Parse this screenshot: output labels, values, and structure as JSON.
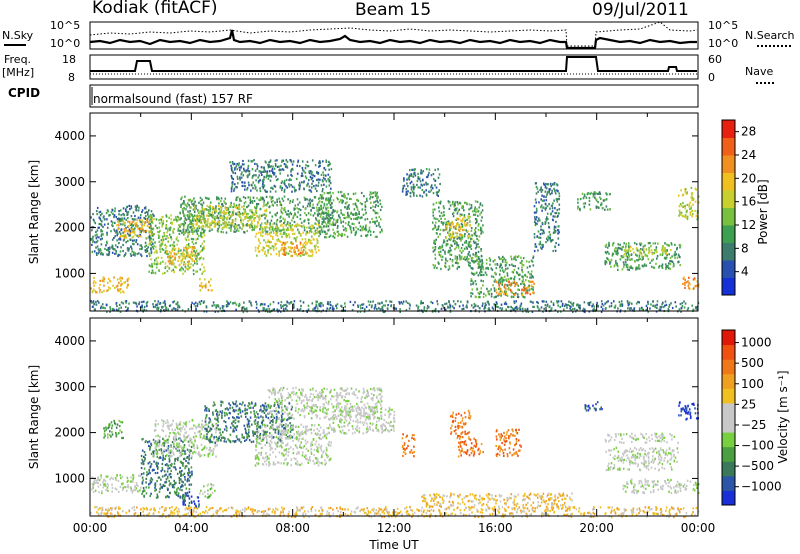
{
  "header": {
    "station": "Kodiak (fitACF)",
    "beam": "Beam 15",
    "date": "09/Jul/2011"
  },
  "summary_panels": {
    "nsky_label": "N.Sky",
    "nsky_ticks": [
      "10^5",
      "10^0"
    ],
    "nsearch_label": "N.Search",
    "nsearch_ticks": [
      "10^5",
      "10^0"
    ],
    "freq_label_1": "Freq.",
    "freq_label_2": "[MHz]",
    "freq_ticks": [
      "18",
      "8"
    ],
    "nave_label": "Nave",
    "nave_ticks": [
      "60",
      "0"
    ],
    "cpid_label": "CPID",
    "cpid_text": "normalsound (fast) 157 RF"
  },
  "chart_data": [
    {
      "type": "heatmap",
      "name": "power-panel",
      "ylabel": "Slant Range [km]",
      "ylim": [
        180,
        4500
      ],
      "yticks": [
        "1000",
        "2000",
        "3000",
        "4000"
      ],
      "xlim": [
        0,
        24
      ],
      "colorbar": {
        "label": "Power [dB]",
        "ticks": [
          "4",
          "8",
          "12",
          "16",
          "20",
          "24",
          "28"
        ],
        "colors": [
          "#1630d8",
          "#2850b0",
          "#3c7c6c",
          "#3ca050",
          "#78c040",
          "#c8d030",
          "#f0c020",
          "#f09020",
          "#f06018",
          "#e82010"
        ]
      },
      "regions": [
        {
          "t0": 0.0,
          "t1": 24.0,
          "r0": 180,
          "r1": 420,
          "level": 2
        },
        {
          "t0": 0.0,
          "t1": 1.5,
          "r0": 600,
          "r1": 950,
          "level": 6
        },
        {
          "t0": 0.0,
          "t1": 2.5,
          "r0": 1400,
          "r1": 2500,
          "level": 2
        },
        {
          "t0": 1.0,
          "t1": 2.5,
          "r0": 1800,
          "r1": 2200,
          "level": 6
        },
        {
          "t0": 2.3,
          "t1": 4.5,
          "r0": 1000,
          "r1": 2300,
          "level": 4
        },
        {
          "t0": 3.0,
          "t1": 4.2,
          "r0": 1200,
          "r1": 1600,
          "level": 6
        },
        {
          "t0": 3.5,
          "t1": 9.5,
          "r0": 1900,
          "r1": 2700,
          "level": 3
        },
        {
          "t0": 4.0,
          "t1": 7.0,
          "r0": 2000,
          "r1": 2500,
          "level": 5
        },
        {
          "t0": 6.5,
          "t1": 9.0,
          "r0": 1400,
          "r1": 2100,
          "level": 5
        },
        {
          "t0": 7.5,
          "t1": 8.5,
          "r0": 1400,
          "r1": 1700,
          "level": 7
        },
        {
          "t0": 4.3,
          "t1": 4.8,
          "r0": 650,
          "r1": 900,
          "level": 6
        },
        {
          "t0": 5.5,
          "t1": 9.5,
          "r0": 2800,
          "r1": 3500,
          "level": 2
        },
        {
          "t0": 9.0,
          "t1": 11.5,
          "r0": 1800,
          "r1": 2800,
          "level": 3
        },
        {
          "t0": 12.3,
          "t1": 13.8,
          "r0": 2700,
          "r1": 3300,
          "level": 2
        },
        {
          "t0": 13.5,
          "t1": 15.5,
          "r0": 1100,
          "r1": 2600,
          "level": 3
        },
        {
          "t0": 14.0,
          "t1": 15.0,
          "r0": 1800,
          "r1": 2300,
          "level": 6
        },
        {
          "t0": 15.0,
          "t1": 17.5,
          "r0": 500,
          "r1": 1400,
          "level": 3
        },
        {
          "t0": 16.0,
          "t1": 17.5,
          "r0": 550,
          "r1": 850,
          "level": 7
        },
        {
          "t0": 17.5,
          "t1": 18.5,
          "r0": 1500,
          "r1": 3000,
          "level": 2
        },
        {
          "t0": 19.2,
          "t1": 20.5,
          "r0": 2400,
          "r1": 2800,
          "level": 3
        },
        {
          "t0": 20.3,
          "t1": 23.3,
          "r0": 1100,
          "r1": 1700,
          "level": 3
        },
        {
          "t0": 21.0,
          "t1": 23.0,
          "r0": 1400,
          "r1": 1600,
          "level": 5
        },
        {
          "t0": 23.2,
          "t1": 24.0,
          "r0": 2200,
          "r1": 2900,
          "level": 5
        },
        {
          "t0": 23.3,
          "t1": 24.0,
          "r0": 650,
          "r1": 950,
          "level": 7
        }
      ]
    },
    {
      "type": "heatmap",
      "name": "velocity-panel",
      "ylabel": "Slant Range [km]",
      "xlabel": "Time UT",
      "ylim": [
        180,
        4500
      ],
      "yticks": [
        "1000",
        "2000",
        "3000",
        "4000"
      ],
      "xlim": [
        0,
        24
      ],
      "xticks": [
        "00:00",
        "04:00",
        "08:00",
        "12:00",
        "16:00",
        "20:00",
        "00:00"
      ],
      "colorbar": {
        "label": "Velocity [m s⁻¹]",
        "ticks": [
          "1000",
          "500",
          "100",
          "25",
          "−25",
          "−100",
          "−500",
          "−1000"
        ],
        "colors": [
          "#1a2fd8",
          "#2a55a8",
          "#3a7a5a",
          "#4aa040",
          "#78d040",
          "#c8c8c8",
          "#c8c8c8",
          "#f0c020",
          "#f0a020",
          "#f07818",
          "#f05010",
          "#e01808"
        ]
      },
      "regions": [
        {
          "t0": 0.0,
          "t1": 24.0,
          "r0": 180,
          "r1": 400,
          "level": 7
        },
        {
          "t0": 0.0,
          "t1": 2.0,
          "r0": 700,
          "r1": 1100,
          "level": 5
        },
        {
          "t0": 0.5,
          "t1": 1.3,
          "r0": 1900,
          "r1": 2300,
          "level": 3
        },
        {
          "t0": 2.0,
          "t1": 4.0,
          "r0": 600,
          "r1": 1900,
          "level": 2
        },
        {
          "t0": 2.5,
          "t1": 5.0,
          "r0": 1500,
          "r1": 2300,
          "level": 5
        },
        {
          "t0": 3.5,
          "t1": 4.3,
          "r0": 400,
          "r1": 700,
          "level": 1
        },
        {
          "t0": 4.3,
          "t1": 4.9,
          "r0": 600,
          "r1": 900,
          "level": 4
        },
        {
          "t0": 4.5,
          "t1": 8.0,
          "r0": 1800,
          "r1": 2700,
          "level": 2
        },
        {
          "t0": 6.5,
          "t1": 9.5,
          "r0": 1300,
          "r1": 2200,
          "level": 5
        },
        {
          "t0": 7.0,
          "t1": 11.5,
          "r0": 2300,
          "r1": 3000,
          "level": 5
        },
        {
          "t0": 9.5,
          "t1": 12.0,
          "r0": 2000,
          "r1": 2600,
          "level": 5
        },
        {
          "t0": 12.3,
          "t1": 12.8,
          "r0": 1500,
          "r1": 2000,
          "level": 9
        },
        {
          "t0": 14.2,
          "t1": 15.0,
          "r0": 1900,
          "r1": 2500,
          "level": 9
        },
        {
          "t0": 14.5,
          "t1": 15.5,
          "r0": 1500,
          "r1": 1900,
          "level": 9
        },
        {
          "t0": 16.0,
          "t1": 17.0,
          "r0": 1500,
          "r1": 2100,
          "level": 9
        },
        {
          "t0": 13.0,
          "t1": 19.0,
          "r0": 400,
          "r1": 700,
          "level": 7
        },
        {
          "t0": 19.5,
          "t1": 20.2,
          "r0": 2500,
          "r1": 2700,
          "level": 1
        },
        {
          "t0": 20.3,
          "t1": 23.2,
          "r0": 1200,
          "r1": 1700,
          "level": 5
        },
        {
          "t0": 20.3,
          "t1": 23.2,
          "r0": 1800,
          "r1": 2000,
          "level": 5
        },
        {
          "t0": 23.2,
          "t1": 24.0,
          "r0": 2300,
          "r1": 2700,
          "level": 0
        },
        {
          "t0": 21.0,
          "t1": 24.0,
          "r0": 700,
          "r1": 1000,
          "level": 5
        }
      ]
    }
  ]
}
